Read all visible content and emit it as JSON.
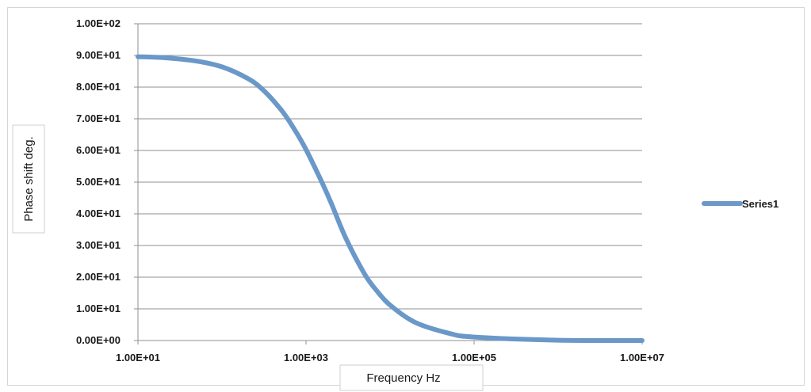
{
  "chart_data": {
    "type": "line",
    "title": "",
    "xlabel": "Frequency Hz",
    "ylabel": "Phase shift deg.",
    "x_scale": "log",
    "xlim": [
      10,
      10000000
    ],
    "ylim": [
      0,
      100
    ],
    "x_ticks": [
      10,
      1000,
      100000,
      10000000
    ],
    "x_tick_labels": [
      "1.00E+01",
      "1.00E+03",
      "1.00E+05",
      "1.00E+07"
    ],
    "y_ticks": [
      0,
      10,
      20,
      30,
      40,
      50,
      60,
      70,
      80,
      90,
      100
    ],
    "y_tick_labels": [
      "0.00E+00",
      "1.00E+01",
      "2.00E+01",
      "3.00E+01",
      "4.00E+01",
      "5.00E+01",
      "6.00E+01",
      "7.00E+01",
      "8.00E+01",
      "9.00E+01",
      "1.00E+02"
    ],
    "grid": "horizontal",
    "legend_position": "right",
    "series": [
      {
        "name": "Series1",
        "color": "#6a98c9",
        "x": [
          10,
          20,
          50,
          100,
          200,
          300,
          500,
          700,
          1000,
          1500,
          2000,
          3000,
          5000,
          7000,
          10000,
          20000,
          50000,
          100000,
          1000000,
          10000000
        ],
        "y": [
          89.6,
          89.3,
          88.2,
          86.4,
          82.8,
          79.4,
          73.0,
          67.4,
          60.3,
          50.7,
          43.3,
          32.1,
          20.9,
          15.6,
          11.2,
          5.7,
          2.3,
          1.1,
          0.1,
          0.0
        ]
      }
    ]
  }
}
